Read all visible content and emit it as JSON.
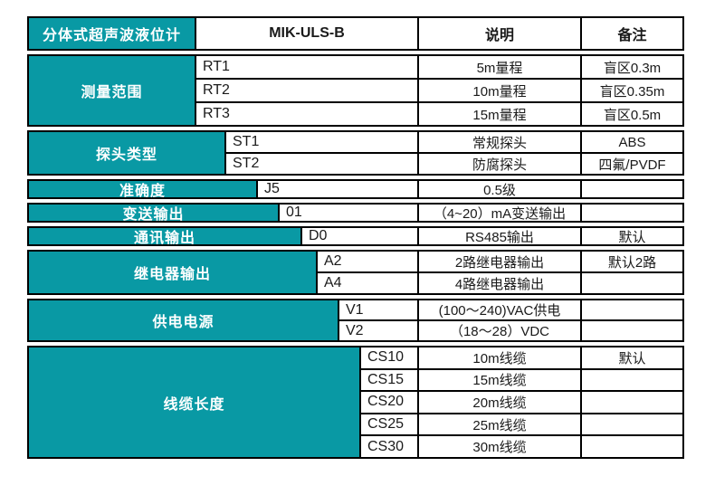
{
  "colors": {
    "teal": "#0999A4",
    "border": "#000000",
    "header_text": "#ffffff",
    "body_text": "#1a1a1a"
  },
  "header": {
    "title": "分体式超声波液位计",
    "model": "MIK-ULS-B",
    "desc_col": "说明",
    "remark_col": "备注"
  },
  "groups": [
    {
      "label": "测量范围",
      "rows": [
        {
          "code": "RT1",
          "desc": "5m量程",
          "remark": "盲区0.3m"
        },
        {
          "code": "RT2",
          "desc": "10m量程",
          "remark": "盲区0.35m"
        },
        {
          "code": "RT3",
          "desc": "15m量程",
          "remark": "盲区0.5m"
        }
      ]
    },
    {
      "label": "探头类型",
      "rows": [
        {
          "code": "ST1",
          "desc": "常规探头",
          "remark": "ABS"
        },
        {
          "code": "ST2",
          "desc": "防腐探头",
          "remark": "四氟/PVDF"
        }
      ]
    },
    {
      "label": "准确度",
      "rows": [
        {
          "code": "J5",
          "desc": "0.5级",
          "remark": ""
        }
      ]
    },
    {
      "label": "变送输出",
      "rows": [
        {
          "code": "01",
          "desc": "（4~20）mA变送输出",
          "remark": ""
        }
      ]
    },
    {
      "label": "通讯输出",
      "rows": [
        {
          "code": "D0",
          "desc": "RS485输出",
          "remark": "默认"
        }
      ]
    },
    {
      "label": "继电器输出",
      "rows": [
        {
          "code": "A2",
          "desc": "2路继电器输出",
          "remark": "默认2路"
        },
        {
          "code": "A4",
          "desc": "4路继电器输出",
          "remark": ""
        }
      ]
    },
    {
      "label": "供电电源",
      "rows": [
        {
          "code": "V1",
          "desc": "(100～240)VAC供电",
          "remark": ""
        },
        {
          "code": "V2",
          "desc": "（18～28）VDC",
          "remark": ""
        }
      ]
    },
    {
      "label": "线缆长度",
      "rows": [
        {
          "code": "CS10",
          "desc": "10m线缆",
          "remark": "默认"
        },
        {
          "code": "CS15",
          "desc": "15m线缆",
          "remark": ""
        },
        {
          "code": "CS20",
          "desc": "20m线缆",
          "remark": ""
        },
        {
          "code": "CS25",
          "desc": "25m线缆",
          "remark": ""
        },
        {
          "code": "CS30",
          "desc": "30m线缆",
          "remark": ""
        }
      ]
    }
  ]
}
